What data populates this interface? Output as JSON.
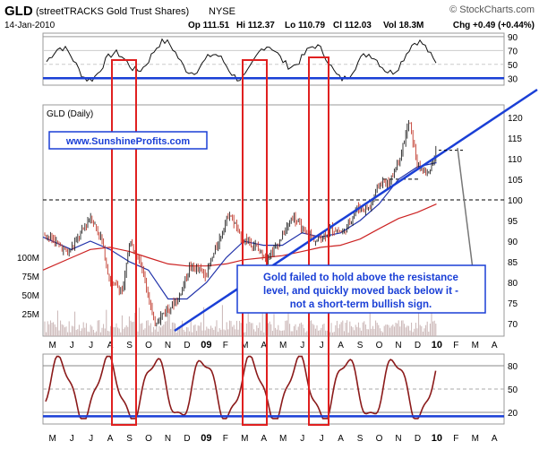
{
  "header": {
    "ticker": "GLD",
    "name": "(streetTRACKS Gold Trust Shares)",
    "exchange": "NYSE",
    "watermark": "© StockCharts.com",
    "date": "14-Jan-2010",
    "open": "Op 111.51",
    "high": "Hi 112.37",
    "low": "Lo 110.79",
    "close": "Cl 112.03",
    "volume": "Vol 18.3M",
    "change": "Chg +0.49 (+0.44%)"
  },
  "colors": {
    "background": "#ffffff",
    "annotation_blue": "#1a3fd6",
    "highlight_red": "#e02020",
    "ma_blue": "#2233aa",
    "ma_red": "#cc2222",
    "price_up": "#222222",
    "price_down": "#c0392b",
    "volume": "#c9b4b4",
    "oscillator": "#8b1a1a"
  },
  "chart_data": [
    {
      "type": "line",
      "title": "",
      "yticks": [
        90,
        70,
        50,
        30
      ],
      "ylim": [
        20,
        95
      ],
      "reference_lines": [
        90,
        70,
        50,
        30
      ],
      "horizontal_support": 30,
      "series": []
    },
    {
      "type": "candlestick",
      "title": "GLD (Daily)",
      "x": [
        "M",
        "J",
        "J",
        "A",
        "S",
        "O",
        "N",
        "D",
        "09",
        "F",
        "M",
        "A",
        "M",
        "J",
        "J",
        "A",
        "S",
        "O",
        "N",
        "D",
        "10",
        "F",
        "M",
        "A"
      ],
      "ylim": [
        67,
        123
      ],
      "yticks": [
        120,
        115,
        110,
        105,
        100,
        95,
        90,
        85,
        80,
        75,
        70
      ],
      "volume_ticks": [
        "100M",
        "75M",
        "50M",
        "25M"
      ],
      "close_path": [
        [
          "2008-05-01",
          92
        ],
        [
          "2008-05-20",
          90
        ],
        [
          "2008-06-10",
          87
        ],
        [
          "2008-06-30",
          92
        ],
        [
          "2008-07-15",
          96
        ],
        [
          "2008-08-01",
          91
        ],
        [
          "2008-08-15",
          80
        ],
        [
          "2008-09-05",
          78
        ],
        [
          "2008-09-15",
          90
        ],
        [
          "2008-10-01",
          86
        ],
        [
          "2008-10-15",
          77
        ],
        [
          "2008-10-24",
          70
        ],
        [
          "2008-11-10",
          73
        ],
        [
          "2008-12-01",
          76
        ],
        [
          "2008-12-20",
          84
        ],
        [
          "2009-01-15",
          82
        ],
        [
          "2009-02-10",
          93
        ],
        [
          "2009-02-20",
          97
        ],
        [
          "2009-03-10",
          91
        ],
        [
          "2009-04-01",
          89
        ],
        [
          "2009-04-20",
          86
        ],
        [
          "2009-05-10",
          90
        ],
        [
          "2009-06-01",
          96
        ],
        [
          "2009-06-15",
          93
        ],
        [
          "2009-07-08",
          90
        ],
        [
          "2009-08-01",
          93
        ],
        [
          "2009-08-20",
          92
        ],
        [
          "2009-09-10",
          98
        ],
        [
          "2009-09-30",
          98
        ],
        [
          "2009-10-15",
          104
        ],
        [
          "2009-11-01",
          104
        ],
        [
          "2009-11-20",
          112
        ],
        [
          "2009-12-02",
          119
        ],
        [
          "2009-12-15",
          108
        ],
        [
          "2009-12-31",
          106
        ],
        [
          "2010-01-14",
          112
        ]
      ],
      "ma_fast": [
        [
          "2008-05-01",
          91
        ],
        [
          "2008-06-15",
          88
        ],
        [
          "2008-07-15",
          90
        ],
        [
          "2008-08-15",
          88
        ],
        [
          "2008-09-15",
          85
        ],
        [
          "2008-10-15",
          83
        ],
        [
          "2008-11-15",
          76
        ],
        [
          "2008-12-15",
          76
        ],
        [
          "2009-01-15",
          80
        ],
        [
          "2009-02-15",
          86
        ],
        [
          "2009-03-15",
          90
        ],
        [
          "2009-04-15",
          89
        ],
        [
          "2009-05-15",
          89
        ],
        [
          "2009-06-15",
          92
        ],
        [
          "2009-07-15",
          91
        ],
        [
          "2009-08-15",
          92
        ],
        [
          "2009-09-15",
          95
        ],
        [
          "2009-10-15",
          99
        ],
        [
          "2009-11-15",
          105
        ],
        [
          "2009-12-15",
          108
        ],
        [
          "2010-01-14",
          109
        ]
      ],
      "ma_slow": [
        [
          "2008-05-01",
          83
        ],
        [
          "2008-06-15",
          86
        ],
        [
          "2008-07-15",
          88
        ],
        [
          "2008-08-15",
          88.5
        ],
        [
          "2008-09-15",
          87.5
        ],
        [
          "2008-10-15",
          86
        ],
        [
          "2008-11-15",
          84.5
        ],
        [
          "2008-12-15",
          84
        ],
        [
          "2009-01-15",
          84
        ],
        [
          "2009-02-15",
          84.5
        ],
        [
          "2009-03-15",
          85.5
        ],
        [
          "2009-04-15",
          86
        ],
        [
          "2009-05-15",
          86.5
        ],
        [
          "2009-06-15",
          87.5
        ],
        [
          "2009-07-15",
          88.5
        ],
        [
          "2009-08-15",
          89
        ],
        [
          "2009-09-15",
          90.5
        ],
        [
          "2009-10-15",
          93
        ],
        [
          "2009-11-15",
          95.5
        ],
        [
          "2009-12-15",
          97
        ],
        [
          "2010-01-14",
          99
        ]
      ],
      "resistance_level": 112,
      "horizontal_levels": [
        100,
        105
      ]
    },
    {
      "type": "line",
      "title": "",
      "yticks": [
        80,
        50,
        20
      ],
      "ylim": [
        5,
        95
      ],
      "reference_lines": [
        80,
        50,
        20
      ],
      "horizontal_support": 15,
      "x": [
        "M",
        "J",
        "J",
        "A",
        "S",
        "O",
        "N",
        "D",
        "09",
        "F",
        "M",
        "A",
        "M",
        "J",
        "J",
        "A",
        "S",
        "O",
        "N",
        "D",
        "10",
        "F",
        "M",
        "A"
      ]
    }
  ],
  "annotations": {
    "website": "www.SunshineProfits.com",
    "comment": "Gold failed to hold above the resistance level, and quickly moved back below it - not a short-term bullish sign."
  }
}
